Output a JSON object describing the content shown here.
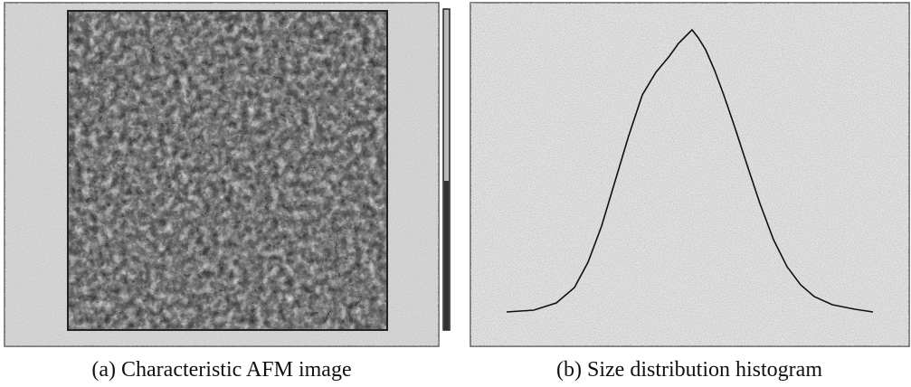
{
  "figure": {
    "panels": [
      {
        "caption": "(a) Characteristic AFM image"
      },
      {
        "caption": "(b) Size distribution histogram"
      }
    ]
  }
}
